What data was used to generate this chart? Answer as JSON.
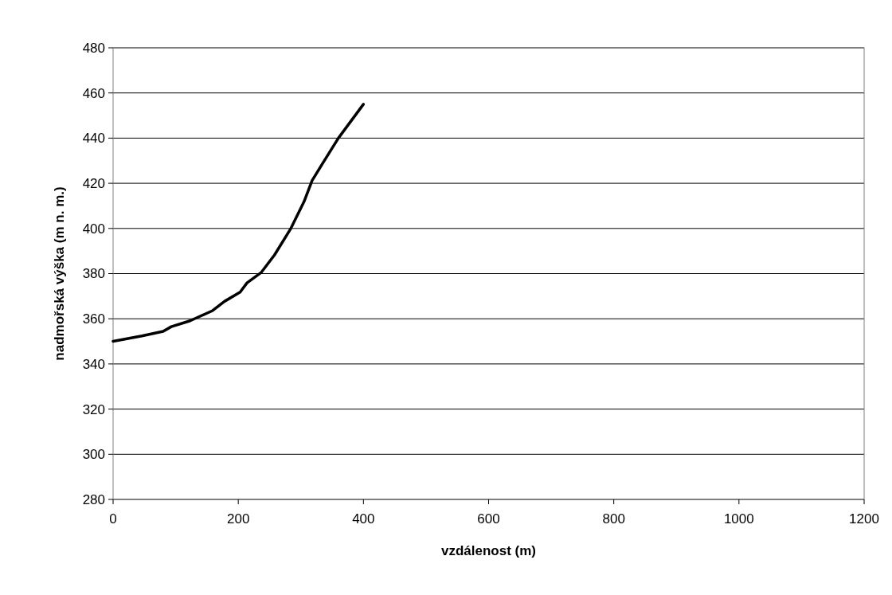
{
  "chart_data": {
    "type": "line",
    "xlabel": "vzdálenost (m)",
    "ylabel": "nadmořská výška (m n. m.)",
    "x": [
      0,
      46,
      80,
      93,
      123,
      159,
      178,
      203,
      214,
      237,
      258,
      284,
      305,
      318,
      335,
      360,
      400
    ],
    "series": [
      {
        "color": "#000000",
        "values": [
          350,
          352.4,
          354.4,
          356.5,
          359.1,
          363.6,
          367.7,
          371.8,
          375.9,
          380.6,
          388.3,
          400,
          411.8,
          421.2,
          428.9,
          440,
          455
        ]
      }
    ],
    "xlim": [
      0,
      1200
    ],
    "xticks": [
      0,
      200,
      400,
      600,
      800,
      1000,
      1200
    ],
    "ylim": [
      280,
      480
    ],
    "yticks": [
      280,
      300,
      320,
      340,
      360,
      380,
      400,
      420,
      440,
      460,
      480
    ],
    "grid": "y",
    "marker": "none",
    "line_style": "solid"
  }
}
